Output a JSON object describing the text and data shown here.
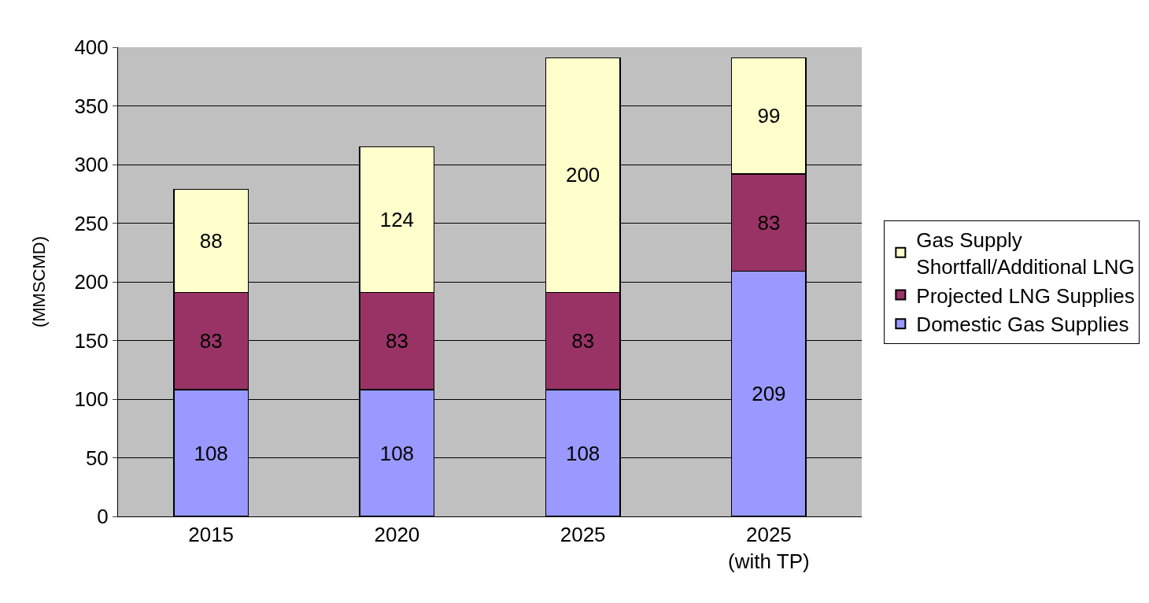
{
  "chart_data": {
    "type": "bar",
    "stacked": true,
    "ylabel": "(MMSCMD)",
    "categories": [
      "2015",
      "2020",
      "2025",
      "2025\n(with TP)"
    ],
    "series": [
      {
        "name": "Domestic Gas Supplies",
        "color": "#9999ff",
        "values": [
          108,
          108,
          108,
          209
        ]
      },
      {
        "name": "Projected LNG Supplies",
        "color": "#993366",
        "values": [
          83,
          83,
          83,
          83
        ]
      },
      {
        "name": "Gas Supply\nShortfall/Additional LNG",
        "color": "#ffffcc",
        "values": [
          88,
          124,
          200,
          99
        ]
      }
    ],
    "ylim": [
      0,
      400
    ],
    "yticks": [
      0,
      50,
      100,
      150,
      200,
      250,
      300,
      350,
      400
    ],
    "grid": "y",
    "legend": "right",
    "data_labels": true
  }
}
